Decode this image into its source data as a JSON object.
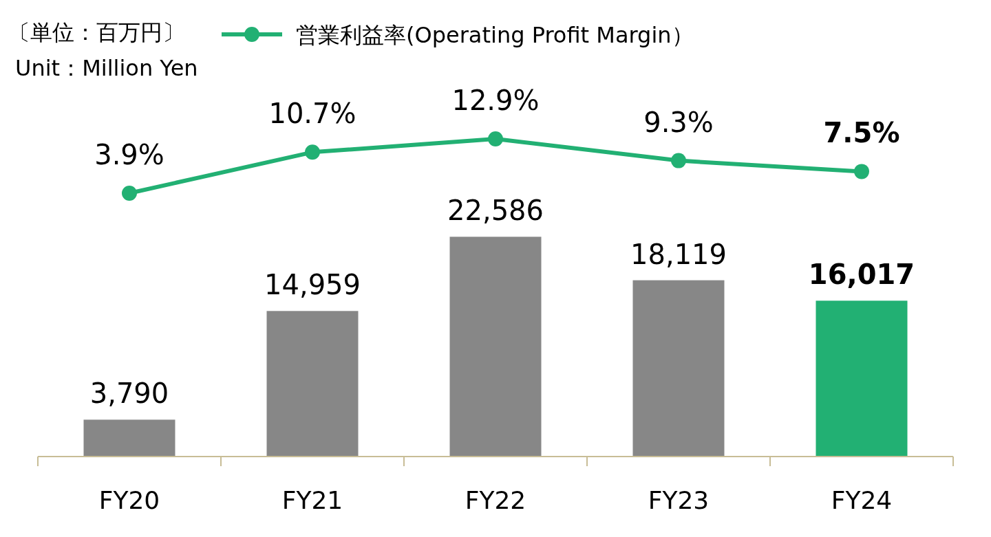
{
  "chart_data": [
    {
      "type": "bar",
      "categories": [
        "FY20",
        "FY21",
        "FY22",
        "FY23",
        "FY24"
      ],
      "colors": [
        "#878787",
        "#878787",
        "#878787",
        "#878787",
        "#22b073"
      ],
      "values": [
        3790,
        14959,
        22586,
        18119,
        16017
      ],
      "value_labels": [
        "3,790",
        "14,959",
        "22,586",
        "18,119",
        "16,017"
      ],
      "tick_labels": "x",
      "annotations": [
        "〔単位：百万円〕",
        "Unit：Million Yen"
      ]
    },
    {
      "type": "line",
      "categories": [
        null,
        null,
        null,
        null,
        null
      ],
      "tick_labels": false,
      "marker": "circle",
      "legend": "top",
      "data_labels": true,
      "series": [
        {
          "name": "営業利益率(Operating Profit Margin）",
          "color": "#22b073",
          "values": [
            3.9,
            10.7,
            12.9,
            9.3,
            7.5
          ],
          "value_labels": [
            "3.9%",
            "10.7%",
            "12.9%",
            "9.3%",
            "7.5%"
          ]
        }
      ]
    }
  ]
}
